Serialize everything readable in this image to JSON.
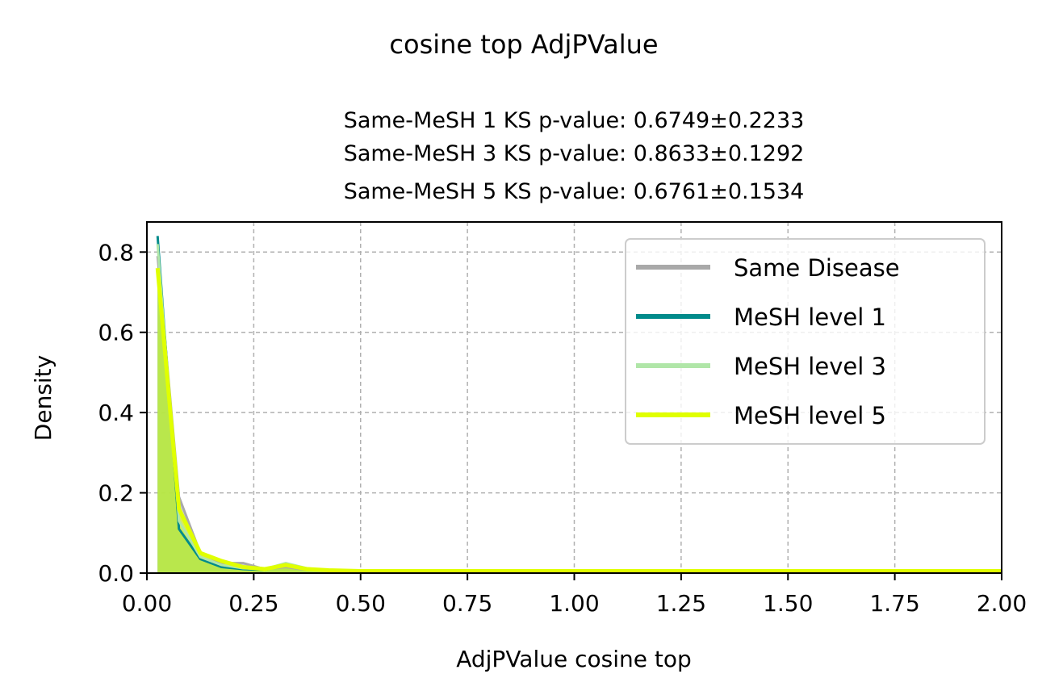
{
  "chart_data": {
    "type": "area",
    "suptitle": "cosine top AdjPValue",
    "subtitle_lines": [
      "Same-MeSH 1 KS p-value: 0.6749±0.2233",
      "Same-MeSH 3 KS p-value: 0.8633±0.1292",
      "Same-MeSH 5 KS p-value: 0.6761±0.1534"
    ],
    "xlabel": "AdjPValue cosine top",
    "ylabel": "Density",
    "xlim": [
      0,
      2
    ],
    "ylim": [
      0,
      0.875
    ],
    "xticks": [
      0,
      0.25,
      0.5,
      0.75,
      1.0,
      1.25,
      1.5,
      1.75,
      2.0
    ],
    "xtick_labels": [
      "0.00",
      "0.25",
      "0.50",
      "0.75",
      "1.00",
      "1.25",
      "1.50",
      "1.75",
      "2.00"
    ],
    "yticks": [
      0,
      0.2,
      0.4,
      0.6,
      0.8
    ],
    "ytick_labels": [
      "0.0",
      "0.2",
      "0.4",
      "0.6",
      "0.8"
    ],
    "grid": true,
    "legend_position": "top-right",
    "series": [
      {
        "name": "Same Disease",
        "color": "#a9a9a9",
        "x": [
          0.025,
          0.075,
          0.125,
          0.175,
          0.225,
          0.275,
          0.325,
          0.375,
          0.425,
          0.5,
          0.75,
          1.0,
          1.25,
          1.5,
          1.75,
          2.0
        ],
        "y": [
          0.79,
          0.19,
          0.05,
          0.025,
          0.025,
          0.01,
          0.015,
          0.008,
          0.005,
          0.004,
          0.003,
          0.003,
          0.003,
          0.003,
          0.003,
          0.003
        ]
      },
      {
        "name": "MeSH level 1",
        "color": "#008b8b",
        "x": [
          0.025,
          0.075,
          0.125,
          0.175,
          0.225,
          0.275,
          0.325,
          0.375,
          0.425,
          0.5,
          0.75,
          1.0,
          1.25,
          1.5,
          1.75,
          2.0
        ],
        "y": [
          0.84,
          0.11,
          0.035,
          0.015,
          0.01,
          0.008,
          0.02,
          0.01,
          0.006,
          0.005,
          0.004,
          0.004,
          0.004,
          0.004,
          0.004,
          0.004
        ]
      },
      {
        "name": "MeSH level 3",
        "color": "#b0e6a8",
        "x": [
          0.025,
          0.075,
          0.125,
          0.175,
          0.225,
          0.275,
          0.325,
          0.375,
          0.425,
          0.5,
          0.75,
          1.0,
          1.25,
          1.5,
          1.75,
          2.0
        ],
        "y": [
          0.82,
          0.13,
          0.04,
          0.02,
          0.012,
          0.01,
          0.025,
          0.012,
          0.007,
          0.005,
          0.004,
          0.004,
          0.004,
          0.004,
          0.004,
          0.004
        ]
      },
      {
        "name": "MeSH level 5",
        "color": "#e0ff00",
        "x": [
          0.025,
          0.075,
          0.125,
          0.175,
          0.225,
          0.275,
          0.325,
          0.375,
          0.425,
          0.5,
          0.75,
          1.0,
          1.25,
          1.5,
          1.75,
          2.0
        ],
        "y": [
          0.76,
          0.16,
          0.05,
          0.03,
          0.015,
          0.01,
          0.02,
          0.01,
          0.007,
          0.005,
          0.005,
          0.005,
          0.005,
          0.005,
          0.005,
          0.005
        ]
      }
    ],
    "colors": {
      "overlap_fill": "#b2e250",
      "grid": "#b0b0b0",
      "axis": "#000000"
    }
  }
}
